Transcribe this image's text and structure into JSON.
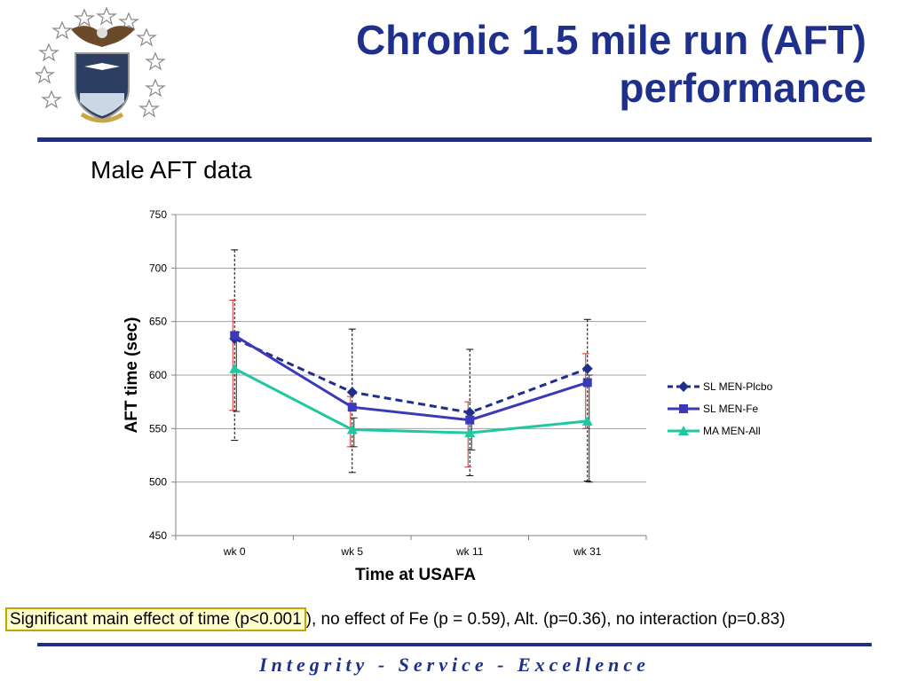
{
  "slide": {
    "title_line1": "Chronic 1.5 mile run (AFT)",
    "title_line2": "performance",
    "subtitle": "Male AFT data",
    "footnote_highlight": "Significant main effect of time (p<0.001",
    "footnote_rest": "), no effect of Fe (p = 0.59), Alt. (p=0.36), no interaction (p=0.83)",
    "footer": "Integrity - Service - Excellence",
    "logo": "usafa-eagle-shield-seal",
    "accent_color": "#1f2f8c"
  },
  "chart_data": {
    "type": "line",
    "title": "",
    "xlabel": "Time at USAFA",
    "ylabel": "AFT time (sec)",
    "categories": [
      "wk 0",
      "wk 5",
      "wk 11",
      "wk 31"
    ],
    "ylim": [
      450,
      750
    ],
    "yticks": [
      450,
      500,
      550,
      600,
      650,
      700,
      750
    ],
    "grid": true,
    "legend_position": "right",
    "series": [
      {
        "name": "SL MEN-Plcbo",
        "color": "#1f2f8c",
        "dash": "dashed",
        "marker": "diamond",
        "values": [
          634,
          584,
          565,
          606
        ],
        "error_low": [
          539,
          509,
          506,
          501
        ],
        "error_high": [
          717,
          643,
          624,
          652
        ]
      },
      {
        "name": "SL MEN-Fe",
        "color": "#3a3ab8",
        "dash": "solid",
        "marker": "square",
        "values": [
          637,
          570,
          558,
          593
        ],
        "error_low": [
          567,
          533,
          514,
          550
        ],
        "error_high": [
          670,
          580,
          575,
          620
        ]
      },
      {
        "name": "MA MEN-All",
        "color": "#1fc8a0",
        "dash": "solid",
        "marker": "triangle",
        "values": [
          606,
          549,
          546,
          557
        ],
        "error_low": [
          566,
          533,
          530,
          500
        ],
        "error_high": [
          640,
          560,
          560,
          600
        ]
      }
    ]
  }
}
